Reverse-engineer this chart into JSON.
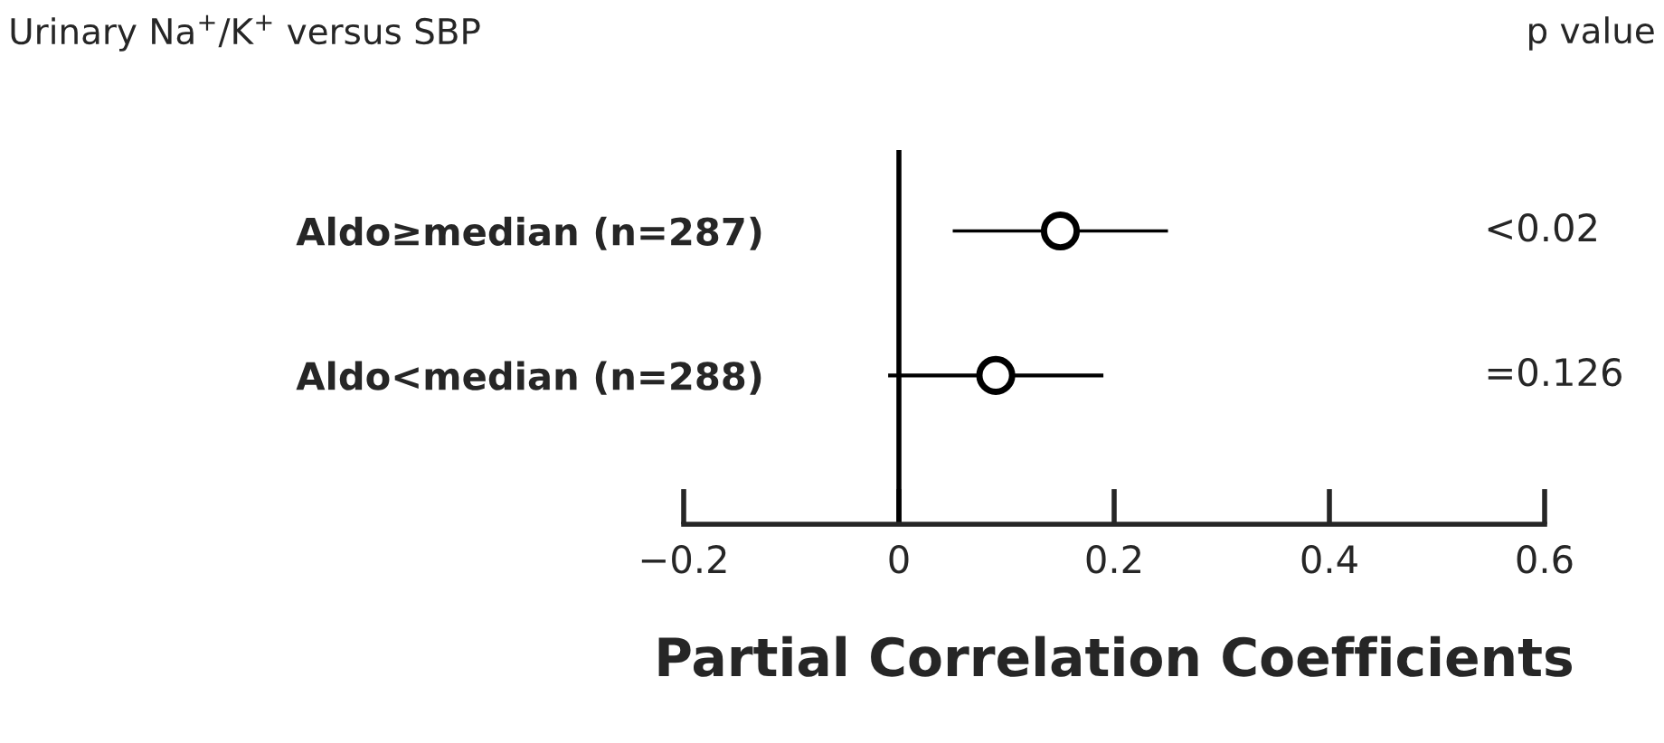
{
  "chart_data": {
    "type": "scatter",
    "title": "Urinary Na$^{+}$/K$^{+}$ versus SBP",
    "xlabel": "Partial Correlation Coefficients",
    "orientation": "horizontal",
    "categories": [
      "Aldo≥median (n=287)",
      "Aldo<median (n=288)"
    ],
    "values": [
      0.15,
      0.09
    ],
    "errors": [
      [
        0.05,
        0.25
      ],
      [
        -0.01,
        0.19
      ]
    ],
    "color": "#000000",
    "marker": "circle",
    "xlim": [
      -0.2,
      0.6
    ],
    "xticks": [
      {
        "value": -0.2,
        "label": "−0.2"
      },
      0,
      0.2,
      0.4,
      0.6
    ],
    "ref_lines": [
      {
        "axis": "x",
        "value": 0
      }
    ],
    "annotations": [
      "p value",
      "<0.02",
      "=0.126"
    ],
    "legend": false
  }
}
